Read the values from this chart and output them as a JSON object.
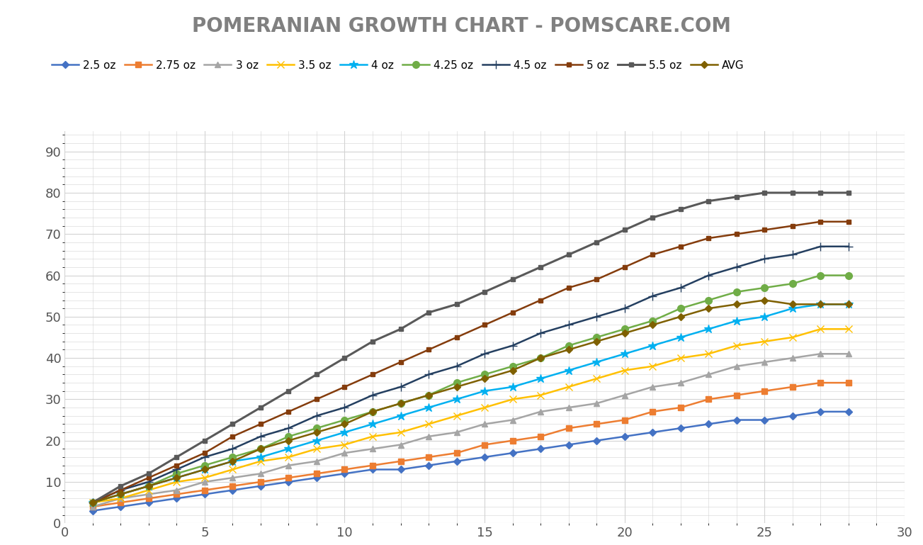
{
  "title": "POMERANIAN GROWTH CHART - POMSCARE.COM",
  "x": [
    1,
    2,
    3,
    4,
    5,
    6,
    7,
    8,
    9,
    10,
    11,
    12,
    13,
    14,
    15,
    16,
    17,
    18,
    19,
    20,
    21,
    22,
    23,
    24,
    25,
    26,
    27,
    28
  ],
  "series": [
    {
      "label": "2.5 oz",
      "color": "#4472C4",
      "marker": "D",
      "markersize": 5,
      "linewidth": 1.8,
      "values": [
        3,
        4,
        5,
        6,
        7,
        8,
        9,
        10,
        11,
        12,
        13,
        13,
        14,
        15,
        16,
        17,
        18,
        19,
        20,
        21,
        22,
        23,
        24,
        25,
        25,
        26,
        27,
        27
      ]
    },
    {
      "label": "2.75 oz",
      "color": "#ED7D31",
      "marker": "s",
      "markersize": 6,
      "linewidth": 1.8,
      "values": [
        4,
        5,
        6,
        7,
        8,
        9,
        10,
        11,
        12,
        13,
        14,
        15,
        16,
        17,
        19,
        20,
        21,
        23,
        24,
        25,
        27,
        28,
        30,
        31,
        32,
        33,
        34,
        34
      ]
    },
    {
      "label": "3 oz",
      "color": "#A5A5A5",
      "marker": "^",
      "markersize": 6,
      "linewidth": 1.8,
      "values": [
        4,
        6,
        7,
        8,
        10,
        11,
        12,
        14,
        15,
        17,
        18,
        19,
        21,
        22,
        24,
        25,
        27,
        28,
        29,
        31,
        33,
        34,
        36,
        38,
        39,
        40,
        41,
        41
      ]
    },
    {
      "label": "3.5 oz",
      "color": "#FFC000",
      "marker": "x",
      "markersize": 7,
      "linewidth": 1.8,
      "values": [
        5,
        6,
        8,
        10,
        11,
        13,
        15,
        16,
        18,
        19,
        21,
        22,
        24,
        26,
        28,
        30,
        31,
        33,
        35,
        37,
        38,
        40,
        41,
        43,
        44,
        45,
        47,
        47
      ]
    },
    {
      "label": "4 oz",
      "color": "#00B0F0",
      "marker": "*",
      "markersize": 9,
      "linewidth": 1.8,
      "values": [
        5,
        7,
        9,
        11,
        13,
        15,
        16,
        18,
        20,
        22,
        24,
        26,
        28,
        30,
        32,
        33,
        35,
        37,
        39,
        41,
        43,
        45,
        47,
        49,
        50,
        52,
        53,
        53
      ]
    },
    {
      "label": "4.25 oz",
      "color": "#70AD47",
      "marker": "o",
      "markersize": 7,
      "linewidth": 1.8,
      "values": [
        5,
        7,
        9,
        12,
        14,
        16,
        18,
        21,
        23,
        25,
        27,
        29,
        31,
        34,
        36,
        38,
        40,
        43,
        45,
        47,
        49,
        52,
        54,
        56,
        57,
        58,
        60,
        60
      ]
    },
    {
      "label": "4.5 oz",
      "color": "#243F60",
      "marker": "+",
      "markersize": 9,
      "linewidth": 1.8,
      "values": [
        5,
        8,
        10,
        13,
        16,
        18,
        21,
        23,
        26,
        28,
        31,
        33,
        36,
        38,
        41,
        43,
        46,
        48,
        50,
        52,
        55,
        57,
        60,
        62,
        64,
        65,
        67,
        67
      ]
    },
    {
      "label": "5 oz",
      "color": "#843C0C",
      "marker": "s",
      "markersize": 5,
      "linewidth": 1.8,
      "values": [
        5,
        8,
        11,
        14,
        17,
        21,
        24,
        27,
        30,
        33,
        36,
        39,
        42,
        45,
        48,
        51,
        54,
        57,
        59,
        62,
        65,
        67,
        69,
        70,
        71,
        72,
        73,
        73
      ]
    },
    {
      "label": "5.5 oz",
      "color": "#595959",
      "marker": "s",
      "markersize": 5,
      "linewidth": 2.2,
      "values": [
        5,
        9,
        12,
        16,
        20,
        24,
        28,
        32,
        36,
        40,
        44,
        47,
        51,
        53,
        56,
        59,
        62,
        65,
        68,
        71,
        74,
        76,
        78,
        79,
        80,
        80,
        80,
        80
      ]
    },
    {
      "label": "AVG",
      "color": "#7F6000",
      "marker": "D",
      "markersize": 5,
      "linewidth": 1.8,
      "values": [
        5,
        7,
        9,
        11,
        13,
        15,
        18,
        20,
        22,
        24,
        27,
        29,
        31,
        33,
        35,
        37,
        40,
        42,
        44,
        46,
        48,
        50,
        52,
        53,
        54,
        53,
        53,
        53
      ]
    }
  ],
  "xlim": [
    0,
    30
  ],
  "ylim": [
    0,
    95
  ],
  "xticks": [
    0,
    5,
    10,
    15,
    20,
    25,
    30
  ],
  "yticks": [
    0,
    10,
    20,
    30,
    40,
    50,
    60,
    70,
    80,
    90
  ],
  "grid_color": "#D3D3D3",
  "background_color": "#FFFFFF",
  "title_fontsize": 20,
  "tick_fontsize": 13,
  "legend_fontsize": 11
}
